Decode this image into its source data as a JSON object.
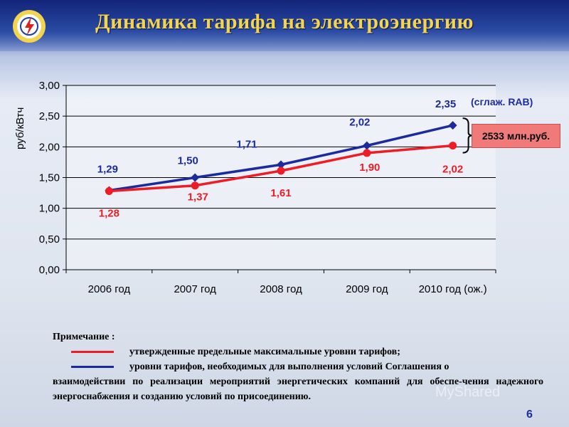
{
  "header": {
    "title": "Динамика тарифа на электроэнергию"
  },
  "chart_data": {
    "type": "line",
    "categories": [
      "2006 год",
      "2007 год",
      "2008 год",
      "2009 год",
      "2010 год (ож.)"
    ],
    "ylabel": "руб/кВтч",
    "ylim": [
      0,
      3
    ],
    "yticks": [
      "0,00",
      "0,50",
      "1,00",
      "1,50",
      "2,00",
      "2,50",
      "3,00"
    ],
    "ytick_values": [
      0,
      0.5,
      1,
      1.5,
      2,
      2.5,
      3
    ],
    "grid": true,
    "series": [
      {
        "key": "blue",
        "color": "#1b2a9e",
        "marker": "diamond",
        "values": [
          1.29,
          1.5,
          1.71,
          2.02,
          2.35
        ],
        "labels": [
          "1,29",
          "1,50",
          "1,71",
          "2,02",
          "2,35"
        ]
      },
      {
        "key": "red",
        "color": "#ee1c25",
        "marker": "circle",
        "values": [
          1.28,
          1.37,
          1.61,
          1.9,
          2.02
        ],
        "labels": [
          "1,28",
          "1,37",
          "1,61",
          "1,90",
          "2,02"
        ]
      }
    ],
    "annotations": {
      "rab_note": "(сглаж. RAB)",
      "difference": "2533 млн.руб."
    }
  },
  "notes": {
    "heading": "Примечание :",
    "red_legend": "утвержденные предельные максимальные уровни тарифов;",
    "blue_legend": "уровни тарифов, необходимых для выполнения условий Соглашения о",
    "blue_legend_cont": "взаимодействии по реализации мероприятий энергетических компаний для обеспе-чения надежного энергоснабжения и созданию условий по присоединению."
  },
  "footer": {
    "page_number": "6"
  },
  "watermark": "MyShared",
  "colors": {
    "title": "#f2d44e",
    "blue_series": "#1b2a9e",
    "red_series": "#ee1c25",
    "box": "#f07a7a"
  }
}
